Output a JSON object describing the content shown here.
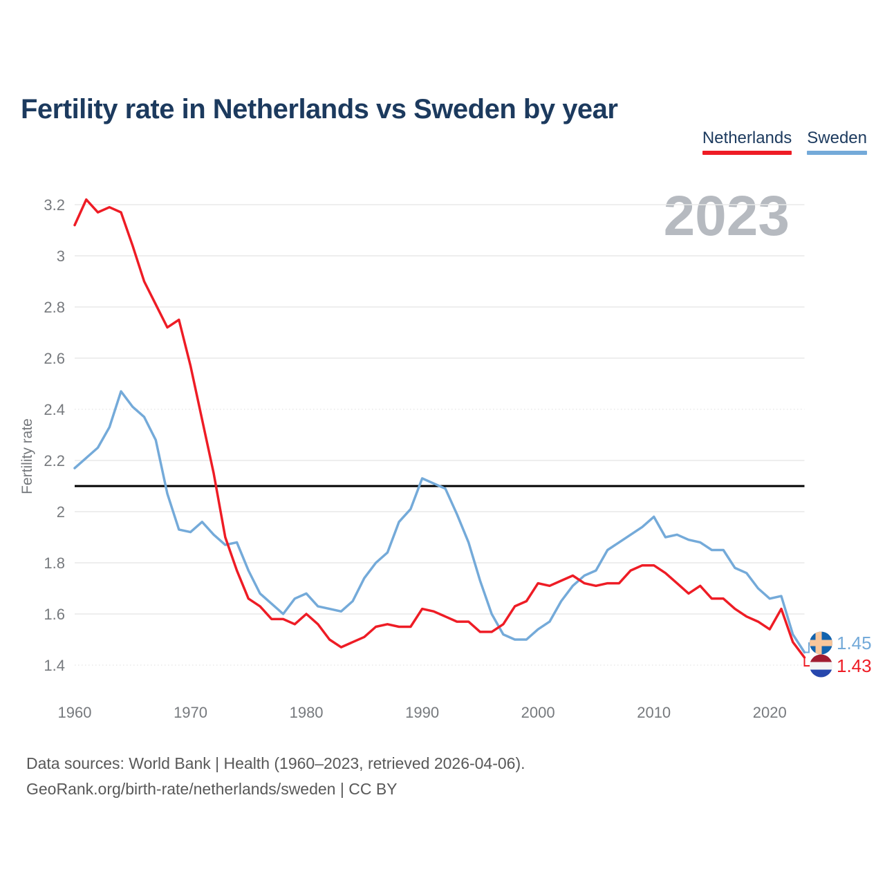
{
  "title": "Fertility rate in Netherlands vs Sweden by year",
  "watermark": "2023",
  "legend": [
    {
      "label": "Netherlands",
      "color": "#ee1c25"
    },
    {
      "label": "Sweden",
      "color": "#74aad9"
    }
  ],
  "footer": {
    "line1": "Data sources: World Bank | Health (1960–2023, retrieved 2026-04-06).",
    "line2": "GeoRank.org/birth-rate/netherlands/sweden | CC BY"
  },
  "colors": {
    "title_text": "#1c3a5e",
    "axis_text": "#76797d",
    "grid": "#e9e9e9",
    "reference_line": "#000000",
    "footer_text": "#585858",
    "watermark": "#b6bac0"
  },
  "flags": {
    "sweden": {
      "background": "#1263ae",
      "cross": "#f8c69b"
    },
    "netherlands": {
      "stripes": [
        "#a11c30",
        "#f4f4f4",
        "#2747ad"
      ]
    }
  },
  "chart_data": {
    "type": "line",
    "title": "Fertility rate in Netherlands vs Sweden by year",
    "xlabel": "",
    "ylabel": "Fertility rate",
    "grid": "horizontal",
    "legend_position": "top-right",
    "ylim": [
      1.35,
      3.28
    ],
    "xlim": [
      1960,
      2023
    ],
    "reference_line": {
      "value": 2.1
    },
    "y_ticks": [
      {
        "label": "3.2",
        "value": 3.2
      },
      {
        "label": "3",
        "value": 3.0
      },
      {
        "label": "2.8",
        "value": 2.8
      },
      {
        "label": "2.6",
        "value": 2.6
      },
      {
        "label": "2.4",
        "value": 2.4,
        "dotted": true
      },
      {
        "label": "2.2",
        "value": 2.2
      },
      {
        "label": "2",
        "value": 2.0
      },
      {
        "label": "1.8",
        "value": 1.8
      },
      {
        "label": "1.6",
        "value": 1.6
      },
      {
        "label": "1.4",
        "value": 1.4,
        "dotted": true
      }
    ],
    "x_ticks": [
      1960,
      1970,
      1980,
      1990,
      2000,
      2010,
      2020
    ],
    "years": [
      1960,
      1961,
      1962,
      1963,
      1964,
      1965,
      1966,
      1967,
      1968,
      1969,
      1970,
      1971,
      1972,
      1973,
      1974,
      1975,
      1976,
      1977,
      1978,
      1979,
      1980,
      1981,
      1982,
      1983,
      1984,
      1985,
      1986,
      1987,
      1988,
      1989,
      1990,
      1991,
      1992,
      1993,
      1994,
      1995,
      1996,
      1997,
      1998,
      1999,
      2000,
      2001,
      2002,
      2003,
      2004,
      2005,
      2006,
      2007,
      2008,
      2009,
      2010,
      2011,
      2012,
      2013,
      2014,
      2015,
      2016,
      2017,
      2018,
      2019,
      2020,
      2021,
      2022,
      2023
    ],
    "series": [
      {
        "name": "Sweden",
        "color": "#74aad9",
        "end_label": "1.45",
        "values": [
          2.17,
          2.21,
          2.25,
          2.33,
          2.47,
          2.41,
          2.37,
          2.28,
          2.07,
          1.93,
          1.92,
          1.96,
          1.91,
          1.87,
          1.88,
          1.77,
          1.68,
          1.64,
          1.6,
          1.66,
          1.68,
          1.63,
          1.62,
          1.61,
          1.65,
          1.74,
          1.8,
          1.84,
          1.96,
          2.01,
          2.13,
          2.11,
          2.09,
          1.99,
          1.88,
          1.73,
          1.6,
          1.52,
          1.5,
          1.5,
          1.54,
          1.57,
          1.65,
          1.71,
          1.75,
          1.77,
          1.85,
          1.88,
          1.91,
          1.94,
          1.98,
          1.9,
          1.91,
          1.89,
          1.88,
          1.85,
          1.85,
          1.78,
          1.76,
          1.7,
          1.66,
          1.67,
          1.52,
          1.45
        ]
      },
      {
        "name": "Netherlands",
        "color": "#ee1c25",
        "end_label": "1.43",
        "values": [
          3.12,
          3.22,
          3.17,
          3.19,
          3.17,
          3.04,
          2.9,
          2.81,
          2.72,
          2.75,
          2.57,
          2.36,
          2.15,
          1.9,
          1.77,
          1.66,
          1.63,
          1.58,
          1.58,
          1.56,
          1.6,
          1.56,
          1.5,
          1.47,
          1.49,
          1.51,
          1.55,
          1.56,
          1.55,
          1.55,
          1.62,
          1.61,
          1.59,
          1.57,
          1.57,
          1.53,
          1.53,
          1.56,
          1.63,
          1.65,
          1.72,
          1.71,
          1.73,
          1.75,
          1.72,
          1.71,
          1.72,
          1.72,
          1.77,
          1.79,
          1.79,
          1.76,
          1.72,
          1.68,
          1.71,
          1.66,
          1.66,
          1.62,
          1.59,
          1.57,
          1.54,
          1.62,
          1.49,
          1.43
        ]
      }
    ]
  }
}
